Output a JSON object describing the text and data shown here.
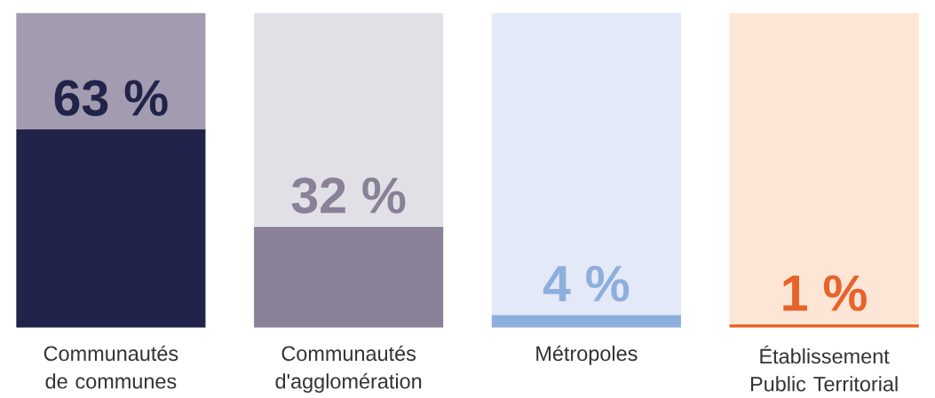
{
  "chart_data": {
    "type": "bar",
    "stacked": true,
    "categories": [
      "Communautés de communes",
      "Communautés d'agglomération",
      "Métropoles",
      "Établissement Public Territorial"
    ],
    "ylim": [
      0,
      100
    ],
    "series": [
      {
        "colors": [
          "#22234a",
          "#8a8198",
          "#8eaedd",
          "#e8632a"
        ],
        "values": [
          63,
          32,
          4,
          1
        ],
        "value_labels": [
          "63 %",
          "32 %",
          "4 %",
          "1 %"
        ]
      },
      {
        "colors": [
          "#a39cb0",
          "#e1e0e6",
          "#e3e9f6",
          "#fde6d6"
        ],
        "values": [
          37,
          68,
          96,
          99
        ]
      }
    ]
  }
}
